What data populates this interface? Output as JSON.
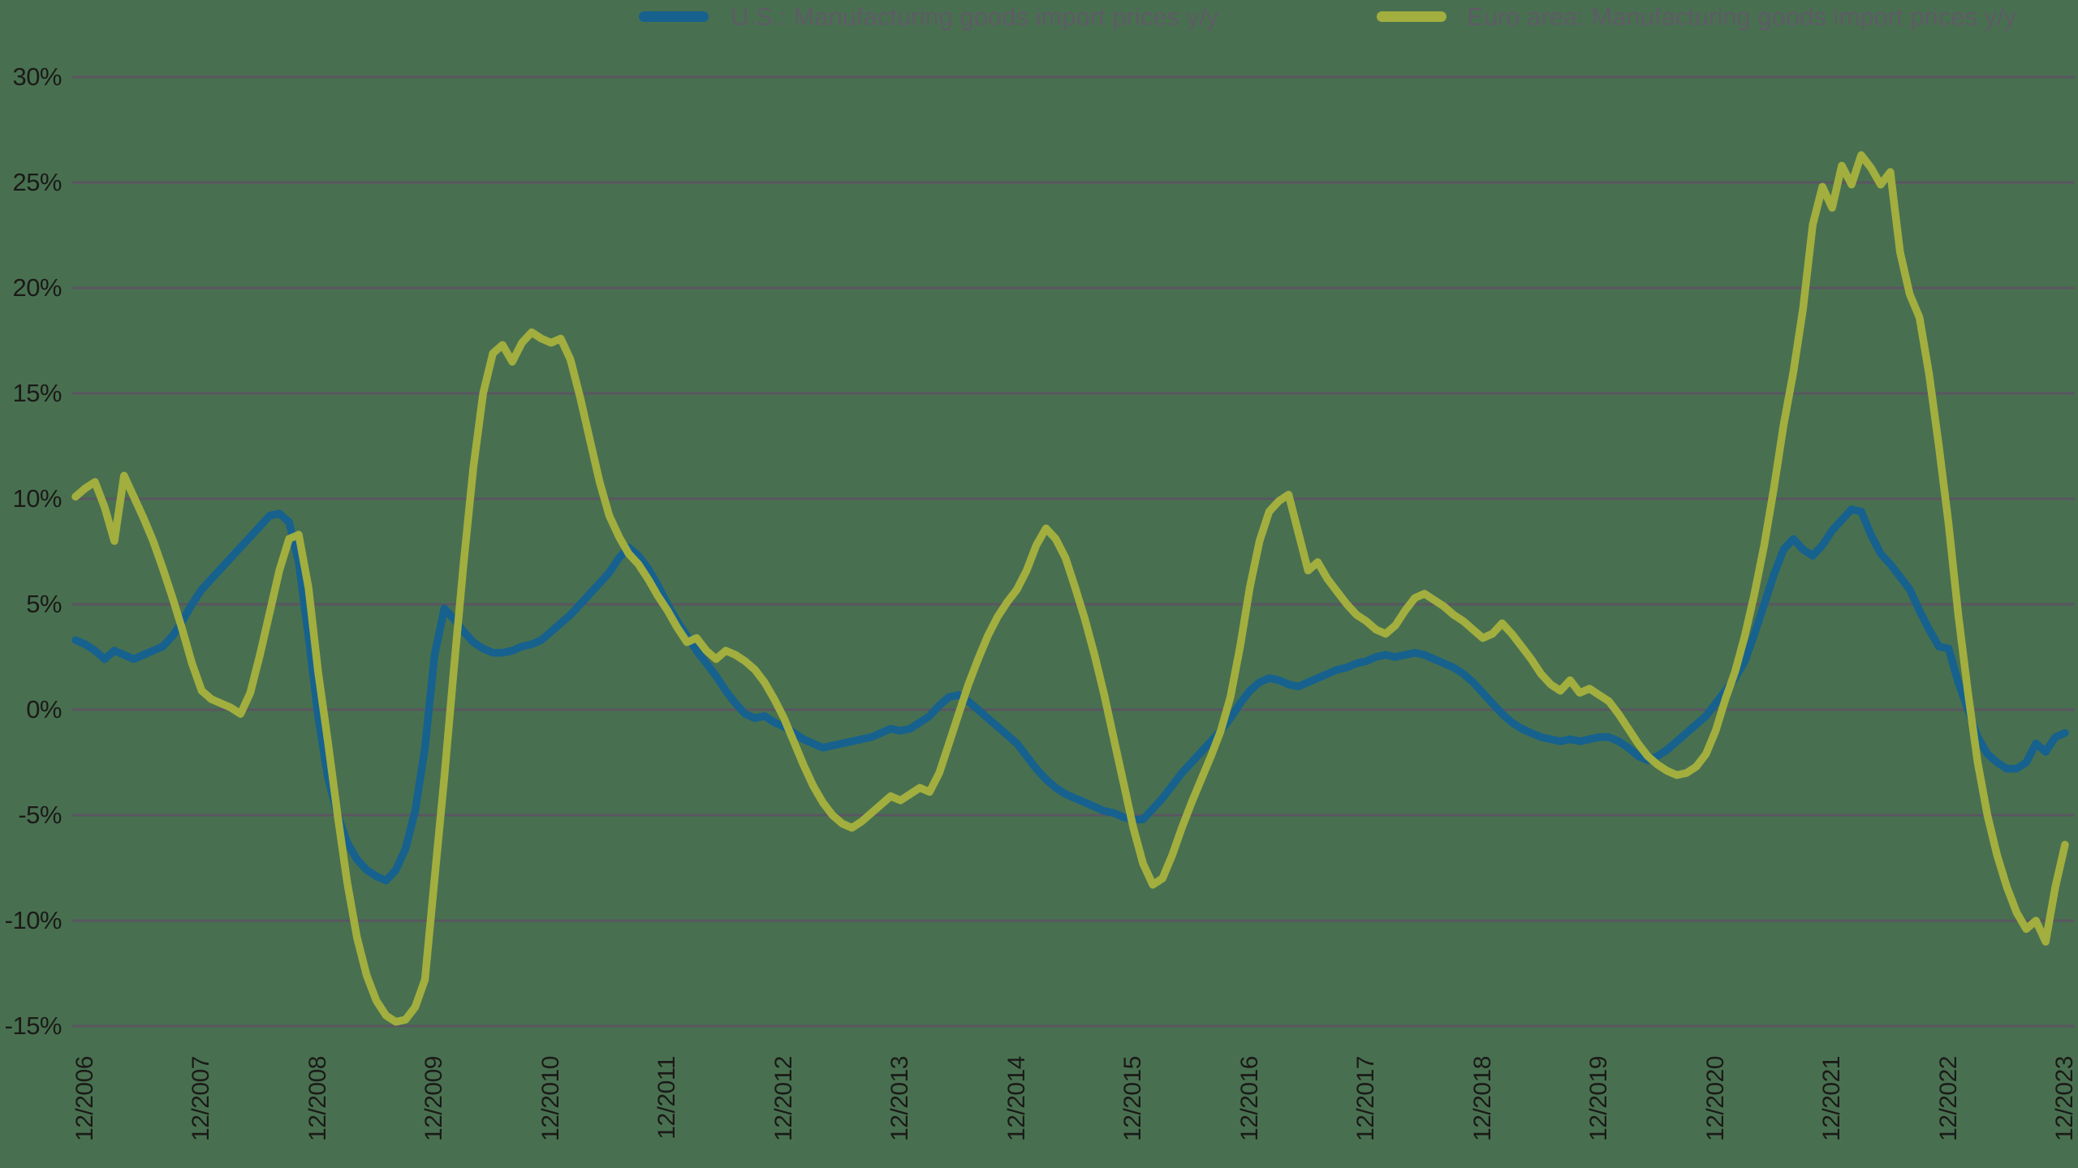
{
  "legend": {
    "us_label": "U.S.: Manufacturing goods import prices y/y",
    "euro_label": "Euro area: Manufacturing goods import prices y/y"
  },
  "chart_data": {
    "type": "line",
    "title": "",
    "frequency": "monthly",
    "x_start_month": "11/2006",
    "x_end_month": "12/2023",
    "x_tick_labels": [
      "12/2006",
      "12/2007",
      "12/2008",
      "12/2009",
      "12/2010",
      "12/2011",
      "12/2012",
      "12/2013",
      "12/2014",
      "12/2015",
      "12/2016",
      "12/2017",
      "12/2018",
      "12/2019",
      "12/2020",
      "12/2021",
      "12/2022",
      "12/2023"
    ],
    "y_tick_labels": [
      "30%",
      "25%",
      "20%",
      "15%",
      "10%",
      "5%",
      "0%",
      "-5%",
      "-10%",
      "-15%"
    ],
    "ylim": [
      -15,
      30
    ],
    "grid": "horizontal",
    "legend_position": "top",
    "colors": {
      "background": "#487050",
      "gridline": "#5a5661",
      "tick_text": "#1b1a18",
      "legend_text": "#5e5b66",
      "us_line": "#16618e",
      "euro_line": "#a2ae3e"
    },
    "series": [
      {
        "name": "U.S.: Manufacturing goods import prices y/y",
        "color": "#16618e",
        "values": [
          3.3,
          3.1,
          2.8,
          2.4,
          2.8,
          2.6,
          2.4,
          2.6,
          2.8,
          3.0,
          3.5,
          4.2,
          5.0,
          5.7,
          6.2,
          6.7,
          7.2,
          7.7,
          8.2,
          8.7,
          9.2,
          9.3,
          8.9,
          7.0,
          3.5,
          -0.3,
          -3.2,
          -5.0,
          -6.3,
          -7.1,
          -7.6,
          -7.9,
          -8.1,
          -7.6,
          -6.6,
          -4.8,
          -1.8,
          2.6,
          4.8,
          4.3,
          3.7,
          3.2,
          2.9,
          2.7,
          2.7,
          2.8,
          3.0,
          3.1,
          3.3,
          3.7,
          4.1,
          4.5,
          5.0,
          5.5,
          6.0,
          6.5,
          7.2,
          7.7,
          7.3,
          6.7,
          5.9,
          5.0,
          4.2,
          3.5,
          2.8,
          2.2,
          1.6,
          0.9,
          0.3,
          -0.2,
          -0.4,
          -0.3,
          -0.6,
          -0.8,
          -1.1,
          -1.4,
          -1.6,
          -1.8,
          -1.7,
          -1.6,
          -1.5,
          -1.4,
          -1.3,
          -1.1,
          -0.9,
          -1.0,
          -0.9,
          -0.6,
          -0.3,
          0.2,
          0.6,
          0.7,
          0.4,
          0.0,
          -0.4,
          -0.8,
          -1.2,
          -1.6,
          -2.2,
          -2.8,
          -3.3,
          -3.7,
          -4.0,
          -4.2,
          -4.4,
          -4.6,
          -4.8,
          -4.9,
          -5.1,
          -5.2,
          -5.2,
          -4.7,
          -4.2,
          -3.6,
          -3.0,
          -2.5,
          -2.0,
          -1.5,
          -1.0,
          -0.4,
          0.3,
          0.9,
          1.3,
          1.5,
          1.4,
          1.2,
          1.1,
          1.3,
          1.5,
          1.7,
          1.9,
          2.0,
          2.2,
          2.3,
          2.5,
          2.6,
          2.5,
          2.6,
          2.7,
          2.6,
          2.4,
          2.2,
          2.0,
          1.7,
          1.3,
          0.8,
          0.3,
          -0.2,
          -0.6,
          -0.9,
          -1.1,
          -1.3,
          -1.4,
          -1.5,
          -1.4,
          -1.5,
          -1.4,
          -1.3,
          -1.3,
          -1.5,
          -1.8,
          -2.2,
          -2.4,
          -2.2,
          -1.9,
          -1.5,
          -1.1,
          -0.7,
          -0.3,
          0.3,
          0.9,
          1.5,
          2.3,
          3.6,
          5.0,
          6.4,
          7.6,
          8.1,
          7.6,
          7.3,
          7.8,
          8.5,
          9.0,
          9.5,
          9.4,
          8.3,
          7.4,
          6.9,
          6.3,
          5.7,
          4.7,
          3.8,
          3.0,
          2.9,
          1.3,
          0.0,
          -1.3,
          -2.1,
          -2.5,
          -2.8,
          -2.8,
          -2.5,
          -1.6,
          -2.0,
          -1.3,
          -1.1
        ]
      },
      {
        "name": "Euro area: Manufacturing goods import prices y/y",
        "color": "#a2ae3e",
        "values": [
          10.1,
          10.5,
          10.8,
          9.6,
          8.0,
          11.1,
          10.1,
          9.1,
          8.0,
          6.7,
          5.3,
          3.8,
          2.2,
          0.9,
          0.5,
          0.3,
          0.1,
          -0.2,
          0.8,
          2.6,
          4.6,
          6.6,
          8.1,
          8.3,
          5.8,
          1.8,
          -1.5,
          -5.0,
          -8.2,
          -10.8,
          -12.6,
          -13.8,
          -14.5,
          -14.8,
          -14.7,
          -14.1,
          -12.8,
          -8.0,
          -3.2,
          2.0,
          7.0,
          11.5,
          15.0,
          16.9,
          17.3,
          16.5,
          17.4,
          17.9,
          17.6,
          17.4,
          17.6,
          16.6,
          14.8,
          12.8,
          10.8,
          9.2,
          8.2,
          7.4,
          6.9,
          6.2,
          5.4,
          4.7,
          3.9,
          3.2,
          3.4,
          2.8,
          2.4,
          2.8,
          2.6,
          2.3,
          1.9,
          1.3,
          0.5,
          -0.4,
          -1.5,
          -2.6,
          -3.6,
          -4.4,
          -5.0,
          -5.4,
          -5.6,
          -5.3,
          -4.9,
          -4.5,
          -4.1,
          -4.3,
          -4.0,
          -3.7,
          -3.9,
          -3.0,
          -1.6,
          -0.2,
          1.2,
          2.4,
          3.5,
          4.4,
          5.1,
          5.7,
          6.6,
          7.8,
          8.6,
          8.1,
          7.2,
          5.8,
          4.3,
          2.6,
          0.7,
          -1.4,
          -3.5,
          -5.6,
          -7.3,
          -8.3,
          -8.0,
          -6.9,
          -5.6,
          -4.4,
          -3.3,
          -2.2,
          -1.0,
          0.6,
          3.0,
          5.8,
          8.0,
          9.4,
          9.9,
          10.2,
          8.4,
          6.6,
          7.0,
          6.2,
          5.6,
          5.0,
          4.5,
          4.2,
          3.8,
          3.6,
          4.0,
          4.7,
          5.3,
          5.5,
          5.2,
          4.9,
          4.5,
          4.2,
          3.8,
          3.4,
          3.6,
          4.1,
          3.6,
          3.0,
          2.4,
          1.7,
          1.2,
          0.9,
          1.4,
          0.8,
          1.0,
          0.7,
          0.4,
          -0.2,
          -0.9,
          -1.6,
          -2.2,
          -2.6,
          -2.9,
          -3.1,
          -3.0,
          -2.7,
          -2.1,
          -1.0,
          0.5,
          1.8,
          3.5,
          5.5,
          7.8,
          10.5,
          13.5,
          16.0,
          19.0,
          23.0,
          24.8,
          23.8,
          25.8,
          24.9,
          26.3,
          25.7,
          24.9,
          25.5,
          21.7,
          19.7,
          18.6,
          15.9,
          12.5,
          8.8,
          4.5,
          0.8,
          -2.5,
          -5.0,
          -6.9,
          -8.4,
          -9.6,
          -10.4,
          -10.0,
          -11.0,
          -8.4,
          -6.4
        ]
      }
    ]
  }
}
